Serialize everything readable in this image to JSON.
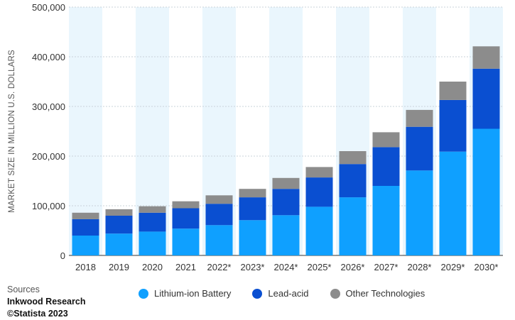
{
  "chart_data": {
    "type": "bar",
    "stacked": true,
    "categories": [
      "2018",
      "2019",
      "2020",
      "2021",
      "2022*",
      "2023*",
      "2024*",
      "2025*",
      "2026*",
      "2027*",
      "2028*",
      "2029*",
      "2030*"
    ],
    "series": [
      {
        "name": "Lithium-ion Battery",
        "color": "#0fa0ff",
        "values": [
          40000,
          44000,
          48000,
          54000,
          61000,
          71000,
          81000,
          98000,
          117000,
          140000,
          171000,
          209000,
          255000
        ]
      },
      {
        "name": "Lead-acid",
        "color": "#0a4fd1",
        "values": [
          33000,
          36000,
          38000,
          41000,
          43000,
          46000,
          53000,
          59000,
          67000,
          78000,
          88000,
          104000,
          121000
        ]
      },
      {
        "name": "Other Technologies",
        "color": "#8c8c8c",
        "values": [
          13000,
          13000,
          13000,
          14000,
          17000,
          17000,
          22000,
          21000,
          26000,
          30000,
          34000,
          37000,
          45000
        ]
      }
    ],
    "ylabel": "MARKET SIZE IN MILLION U.S. DOLLARS",
    "ylim": [
      0,
      500000
    ],
    "yticks": [
      "0",
      "100,000",
      "200,000",
      "300,000",
      "400,000",
      "500,000"
    ],
    "grid": true,
    "legend_position": "bottom"
  },
  "sources": {
    "label": "Sources",
    "name": "Inkwood Research",
    "copyright": "©Statista 2023"
  }
}
